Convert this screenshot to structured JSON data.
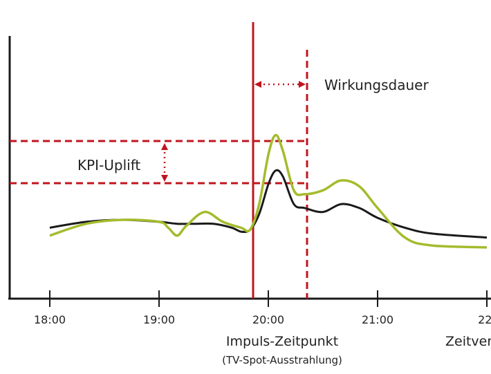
{
  "chart_data": {
    "type": "line",
    "x_unit": "time",
    "tick_labels": [
      "18:00",
      "19:00",
      "20:00",
      "21:00",
      "22:"
    ],
    "x_axis_label": "Zeitver",
    "impulse_label": "Impuls-Zeitpunkt",
    "impulse_sublabel": "(TV-Spot-Ausstrahlung)",
    "duration_label": "Wirkungsdauer",
    "uplift_label": "KPI-Uplift",
    "impulse_time": "19:51",
    "effect_end_time": "20:20",
    "y_axis_values_shown": false,
    "series": [
      {
        "color": "#1a1a1a",
        "points": [
          [
            "18:00",
            0.36
          ],
          [
            "18:20",
            0.39
          ],
          [
            "18:40",
            0.4
          ],
          [
            "19:00",
            0.39
          ],
          [
            "19:10",
            0.38
          ],
          [
            "19:20",
            0.38
          ],
          [
            "19:30",
            0.38
          ],
          [
            "19:40",
            0.36
          ],
          [
            "19:45",
            0.34
          ],
          [
            "19:50",
            0.35
          ],
          [
            "19:55",
            0.43
          ],
          [
            "20:00",
            0.58
          ],
          [
            "20:04",
            0.65
          ],
          [
            "20:08",
            0.62
          ],
          [
            "20:14",
            0.48
          ],
          [
            "20:20",
            0.46
          ],
          [
            "20:30",
            0.44
          ],
          [
            "20:40",
            0.48
          ],
          [
            "20:50",
            0.46
          ],
          [
            "21:00",
            0.41
          ],
          [
            "21:15",
            0.36
          ],
          [
            "21:30",
            0.33
          ],
          [
            "22:00",
            0.31
          ]
        ]
      },
      {
        "color": "#a5bb2c",
        "points": [
          [
            "18:00",
            0.32
          ],
          [
            "18:20",
            0.38
          ],
          [
            "18:40",
            0.4
          ],
          [
            "19:00",
            0.39
          ],
          [
            "19:05",
            0.36
          ],
          [
            "19:10",
            0.32
          ],
          [
            "19:15",
            0.37
          ],
          [
            "19:25",
            0.44
          ],
          [
            "19:35",
            0.39
          ],
          [
            "19:45",
            0.36
          ],
          [
            "19:50",
            0.35
          ],
          [
            "19:55",
            0.48
          ],
          [
            "20:00",
            0.73
          ],
          [
            "20:04",
            0.83
          ],
          [
            "20:08",
            0.75
          ],
          [
            "20:14",
            0.55
          ],
          [
            "20:20",
            0.53
          ],
          [
            "20:30",
            0.55
          ],
          [
            "20:40",
            0.6
          ],
          [
            "20:50",
            0.57
          ],
          [
            "21:00",
            0.46
          ],
          [
            "21:15",
            0.31
          ],
          [
            "21:30",
            0.27
          ],
          [
            "22:00",
            0.26
          ]
        ]
      }
    ],
    "colors": {
      "highlight": "#c0141e",
      "axis": "#1a1a1a"
    }
  }
}
